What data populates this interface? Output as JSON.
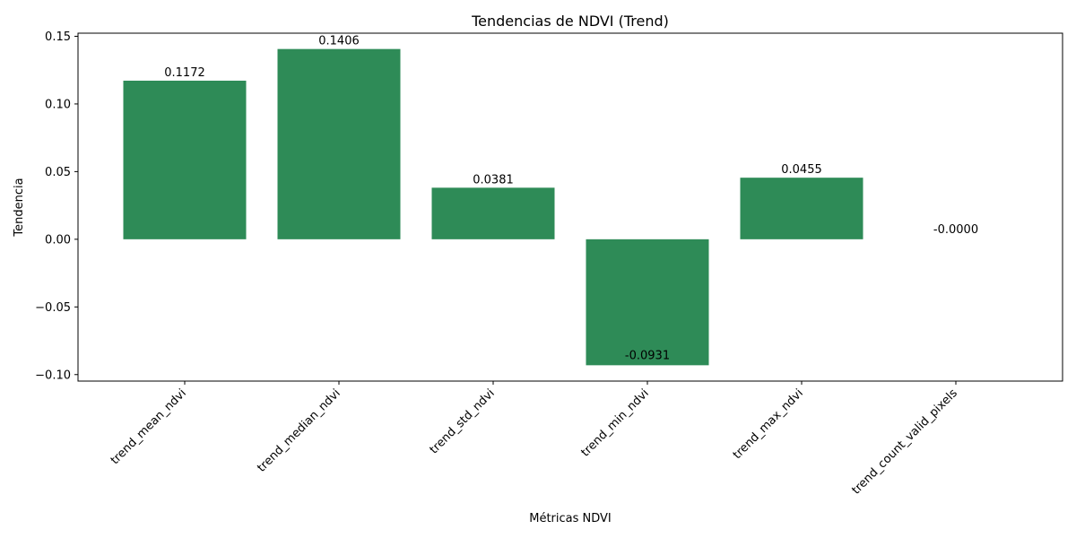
{
  "chart_data": {
    "type": "bar",
    "title": "Tendencias de NDVI (Trend)",
    "xlabel": "Métricas NDVI",
    "ylabel": "Tendencia",
    "categories": [
      "trend_mean_ndvi",
      "trend_median_ndvi",
      "trend_std_ndvi",
      "trend_min_ndvi",
      "trend_max_ndvi",
      "trend_count_valid_pixels"
    ],
    "values": [
      0.1172,
      0.1406,
      0.0381,
      -0.0931,
      0.0455,
      -0.0
    ],
    "value_labels": [
      "0.1172",
      "0.1406",
      "0.0381",
      "-0.0931",
      "0.0455",
      "-0.0000"
    ],
    "yticks": [
      -0.1,
      -0.05,
      0.0,
      0.05,
      0.1,
      0.15
    ],
    "ytick_labels": [
      "−0.10",
      "−0.05",
      "0.00",
      "0.05",
      "0.10",
      "0.15"
    ],
    "ylim": [
      -0.1048,
      0.1523
    ],
    "bar_color": "#2e8b57",
    "grid": false,
    "legend": "none"
  }
}
